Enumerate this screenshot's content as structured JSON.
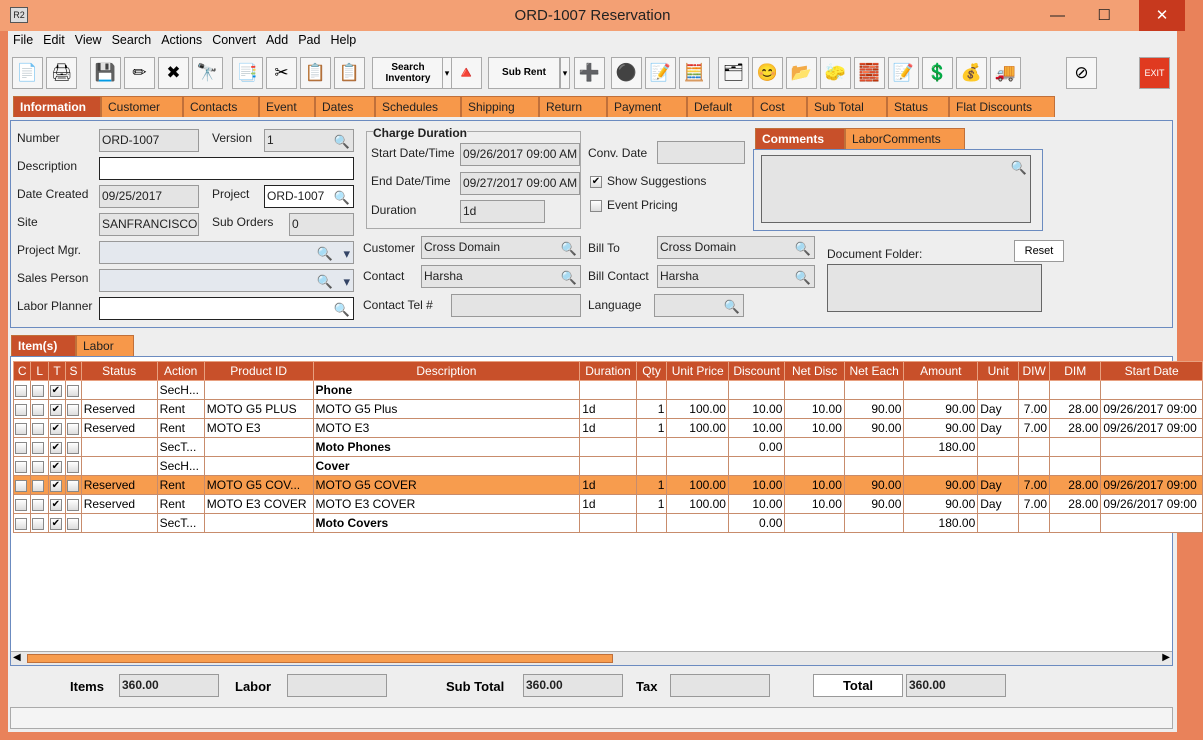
{
  "window": {
    "title": "ORD-1007 Reservation",
    "logo": "R2",
    "controls": [
      "minimize",
      "maximize",
      "close"
    ]
  },
  "menu": [
    "File",
    "Edit",
    "View",
    "Search",
    "Actions",
    "Convert",
    "Add",
    "Pad",
    "Help"
  ],
  "toolbar": {
    "search_inventory": "Search Inventory",
    "sub_rent": "Sub Rent",
    "exit": "EXIT",
    "icons": [
      "new-icon",
      "print-icon",
      "save-icon",
      "edit-icon",
      "delete-icon",
      "binoculars-icon",
      "copy-doc-icon",
      "cut-icon",
      "copy-icon",
      "paste-icon"
    ]
  },
  "tabs": [
    "Information",
    "Customer",
    "Contacts",
    "Event",
    "Dates",
    "Schedules",
    "Shipping",
    "Return",
    "Payment",
    "Default",
    "Cost",
    "Sub Total",
    "Status",
    "Flat Discounts"
  ],
  "info": {
    "number_label": "Number",
    "number": "ORD-1007",
    "version_label": "Version",
    "version": "1",
    "description_label": "Description",
    "description": "",
    "date_created_label": "Date Created",
    "date_created": "09/25/2017",
    "project_label": "Project",
    "project": "ORD-1007",
    "site_label": "Site",
    "site": "SANFRANCISCO",
    "sub_orders_label": "Sub Orders",
    "sub_orders": "0",
    "project_mgr_label": "Project Mgr.",
    "sales_person_label": "Sales Person",
    "labor_planner_label": "Labor Planner",
    "charge_duration_title": "Charge Duration",
    "start_label": "Start Date/Time",
    "start": "09/26/2017 09:00 AM",
    "end_label": "End Date/Time",
    "end": "09/27/2017 09:00 AM",
    "duration_label": "Duration",
    "duration": "1d",
    "conv_date_label": "Conv. Date",
    "show_suggestions": "Show Suggestions",
    "show_suggestions_checked": true,
    "event_pricing": "Event Pricing",
    "event_pricing_checked": false,
    "comments_tab": "Comments",
    "labor_comments_tab": "LaborComments",
    "customer_label": "Customer",
    "customer": "Cross Domain",
    "bill_to_label": "Bill To",
    "bill_to": "Cross Domain",
    "contact_label": "Contact",
    "contact": "Harsha",
    "bill_contact_label": "Bill Contact",
    "bill_contact": "Harsha",
    "contact_tel_label": "Contact Tel #",
    "language_label": "Language",
    "document_folder_label": "Document Folder:",
    "reset": "Reset"
  },
  "item_tabs": [
    "Item(s)",
    "Labor"
  ],
  "grid": {
    "columns": [
      "C",
      "L",
      "T",
      "S",
      "Status",
      "Action",
      "Product ID",
      "Description",
      "Duration",
      "Qty",
      "Unit Price",
      "Discount",
      "Net Disc",
      "Net Each",
      "Amount",
      "Unit",
      "DIW",
      "DIM",
      "Start Date"
    ],
    "rows": [
      [
        "",
        "",
        "1",
        "",
        "",
        "SecH...",
        "",
        "Phone",
        "",
        "",
        "",
        "",
        "",
        "",
        "",
        "",
        "",
        "",
        ""
      ],
      [
        "",
        "",
        "1",
        "",
        "Reserved",
        "Rent",
        "MOTO G5 PLUS",
        "MOTO G5 Plus",
        "1d",
        "1",
        "100.00",
        "10.00",
        "10.00",
        "90.00",
        "90.00",
        "Day",
        "7.00",
        "28.00",
        "09/26/2017 09:00"
      ],
      [
        "",
        "",
        "1",
        "",
        "Reserved",
        "Rent",
        "MOTO E3",
        "MOTO E3",
        "1d",
        "1",
        "100.00",
        "10.00",
        "10.00",
        "90.00",
        "90.00",
        "Day",
        "7.00",
        "28.00",
        "09/26/2017 09:00"
      ],
      [
        "",
        "",
        "1",
        "",
        "",
        "SecT...",
        "",
        "Moto Phones",
        "",
        "",
        "",
        "0.00",
        "",
        "",
        "180.00",
        "",
        "",
        "",
        ""
      ],
      [
        "",
        "",
        "1",
        "",
        "",
        "SecH...",
        "",
        "Cover",
        "",
        "",
        "",
        "",
        "",
        "",
        "",
        "",
        "",
        "",
        ""
      ],
      [
        "",
        "",
        "1",
        "",
        "Reserved",
        "Rent",
        "MOTO G5 COV...",
        "MOTO G5 COVER",
        "1d",
        "1",
        "100.00",
        "10.00",
        "10.00",
        "90.00",
        "90.00",
        "Day",
        "7.00",
        "28.00",
        "09/26/2017 09:00"
      ],
      [
        "",
        "",
        "1",
        "",
        "Reserved",
        "Rent",
        "MOTO E3 COVER",
        "MOTO E3 COVER",
        "1d",
        "1",
        "100.00",
        "10.00",
        "10.00",
        "90.00",
        "90.00",
        "Day",
        "7.00",
        "28.00",
        "09/26/2017 09:00"
      ],
      [
        "",
        "",
        "1",
        "",
        "",
        "SecT...",
        "",
        "Moto Covers",
        "",
        "",
        "",
        "0.00",
        "",
        "",
        "180.00",
        "",
        "",
        "",
        ""
      ]
    ],
    "bold_rows": [
      0,
      3,
      4,
      7
    ],
    "highlighted_row": 5
  },
  "totals": {
    "items_label": "Items",
    "items": "360.00",
    "labor_label": "Labor",
    "labor": "",
    "sub_total_label": "Sub Total",
    "sub_total": "360.00",
    "tax_label": "Tax",
    "tax": "",
    "total_label": "Total",
    "total": "360.00"
  },
  "colors": {
    "accent": "#c8502a",
    "tab": "#f7984a",
    "frame": "#e9825a"
  }
}
